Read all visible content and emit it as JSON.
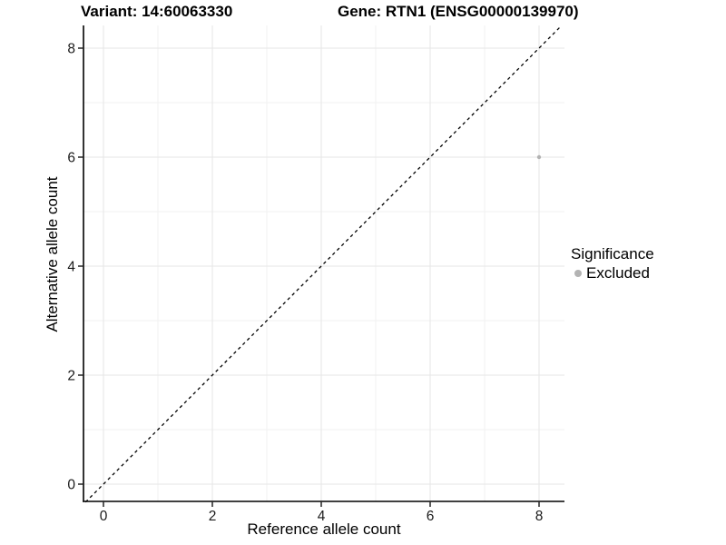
{
  "chart_data": {
    "type": "scatter",
    "title_left": "Variant: 14:60063330",
    "title_right": "Gene: RTN1 (ENSG00000139970)",
    "xlabel": "Reference allele count",
    "ylabel": "Alternative allele count",
    "x_ticks": [
      0,
      2,
      4,
      6,
      8
    ],
    "y_ticks": [
      0,
      2,
      4,
      6,
      8
    ],
    "x_minor_ticks": [
      1,
      3,
      5,
      7
    ],
    "y_minor_ticks": [
      1,
      3,
      5,
      7
    ],
    "xlim": [
      -0.36,
      8.46
    ],
    "ylim": [
      -0.33,
      8.41
    ],
    "grid": true,
    "legend": {
      "position": "right",
      "title": "Significance",
      "items": [
        {
          "label": "Excluded",
          "color": "#b3b3b3"
        }
      ]
    },
    "identity_line": {
      "slope": 1,
      "intercept": 0,
      "style": "dashed",
      "color": "#000000"
    },
    "series": [
      {
        "name": "Excluded",
        "color": "#b3b3b3",
        "marker_radius": 2.2,
        "points": [
          [
            8,
            6
          ]
        ]
      }
    ],
    "colors": {
      "axis": "#000000",
      "tick_text": "#1a1a1a",
      "grid_major": "#e5e5e5",
      "grid_minor": "#f2f2f2",
      "background": "#ffffff"
    }
  }
}
